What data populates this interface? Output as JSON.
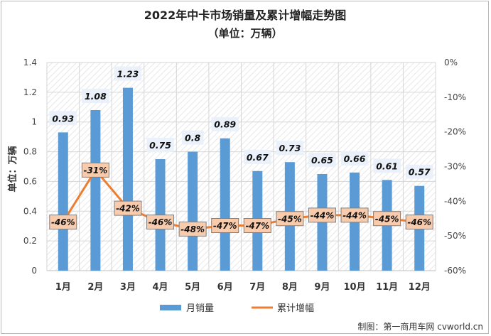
{
  "chart_data": {
    "type": "bar",
    "title": "2022年中卡市场销量及累计增幅走势图",
    "subtitle": "（单位：万辆）",
    "ylabel": "单位：万辆",
    "categories": [
      "1月",
      "2月",
      "3月",
      "4月",
      "5月",
      "6月",
      "7月",
      "8月",
      "9月",
      "10月",
      "11月",
      "12月"
    ],
    "ylim": [
      0,
      1.4
    ],
    "yticks": [
      "0",
      "0.2",
      "0.4",
      "0.6",
      "0.8",
      "1",
      "1.2",
      "1.4"
    ],
    "y2lim": [
      -60,
      0
    ],
    "y2ticks": [
      "0%",
      "-10%",
      "-20%",
      "-30%",
      "-40%",
      "-50%",
      "-60%"
    ],
    "series": [
      {
        "name": "月销量",
        "type": "bar",
        "color": "#5b9bd5",
        "values": [
          0.93,
          1.08,
          1.23,
          0.75,
          0.8,
          0.89,
          0.67,
          0.73,
          0.65,
          0.66,
          0.61,
          0.57
        ],
        "labels": [
          "0.93",
          "1.08",
          "1.23",
          "0.75",
          "0.8",
          "0.89",
          "0.67",
          "0.73",
          "0.65",
          "0.66",
          "0.61",
          "0.57"
        ]
      },
      {
        "name": "累计增幅",
        "type": "line",
        "axis": "right",
        "color": "#ed7d31",
        "values": [
          -46,
          -31,
          -42,
          -46,
          -48,
          -47,
          -47,
          -45,
          -44,
          -44,
          -45,
          -46
        ],
        "labels": [
          "-46%",
          "-31%",
          "-42%",
          "-46%",
          "-48%",
          "-47%",
          "-47%",
          "-45%",
          "-44%",
          "-44%",
          "-45%",
          "-46%"
        ]
      }
    ],
    "grid": true,
    "legend": "bottom"
  },
  "credit": "制图：第一商用车网 cvworld.cn"
}
